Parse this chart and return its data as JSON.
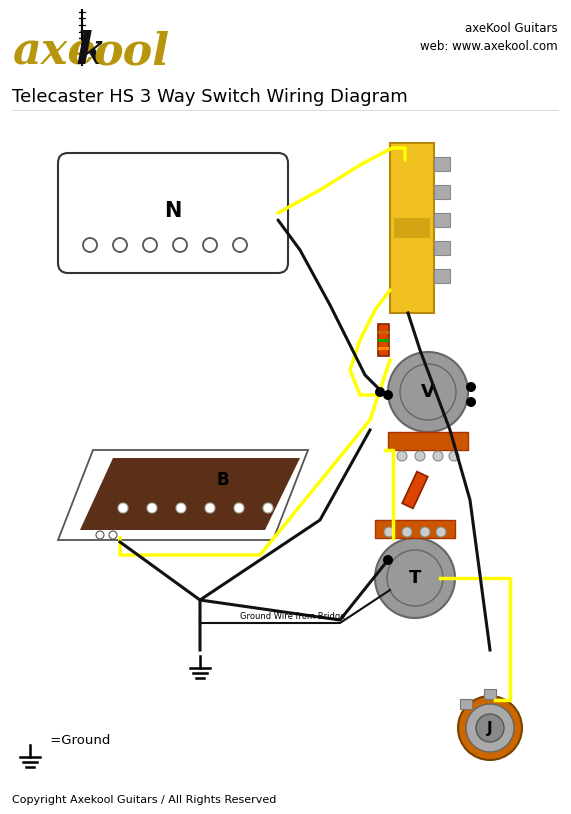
{
  "title": "Telecaster HS 3 Way Switch Wiring Diagram",
  "company_line1": "axeKool Guitars",
  "company_line2": "web: www.axekool.com",
  "copyright": "Copyright Axekool Guitars / All Rights Reserved",
  "ground_label": " =Ground",
  "ground_wire_label": "Ground Wire from Bridge",
  "neck_label": "N",
  "bridge_label": "B",
  "vol_label": "V",
  "tone_label": "T",
  "jack_label": "J",
  "bg_color": "#ffffff",
  "wire_yellow": "#ffff00",
  "wire_black": "#111111",
  "switch_gold": "#f0c020",
  "switch_gold_dark": "#b8880a",
  "pot_gray": "#999999",
  "pot_gray2": "#aaaaaa",
  "pot_orange": "#cc5500",
  "pickup_neck_fill": "#ffffff",
  "pickup_bridge_fill": "#5c3018",
  "resistor_color": "#dd4400",
  "jack_outer": "#cc6600",
  "jack_gray": "#aaaaaa",
  "logo_gold": "#b8960c",
  "terminal_gray": "#aaaaaa"
}
